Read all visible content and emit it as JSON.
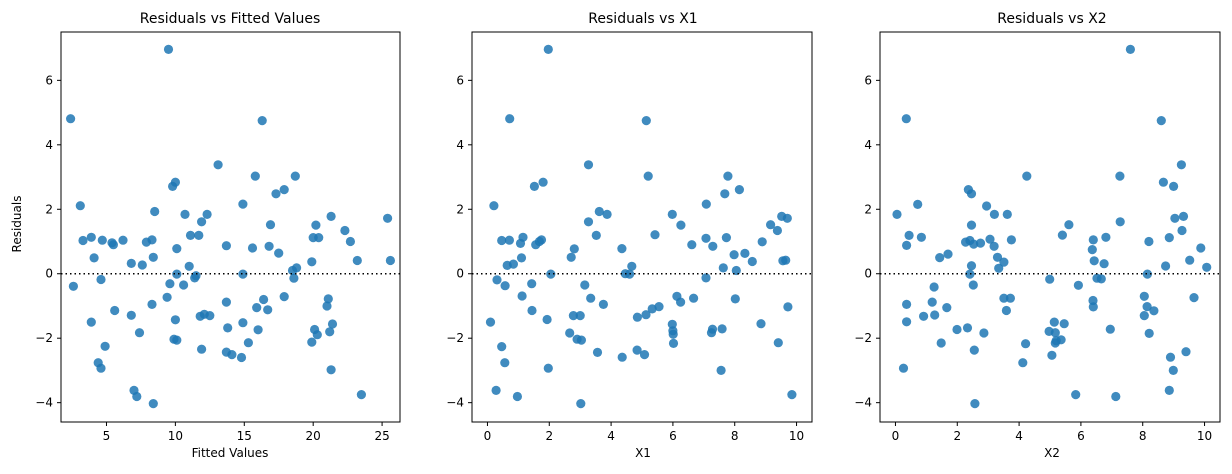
{
  "chart_data": [
    {
      "type": "scatter",
      "title": "Residuals vs Fitted Values",
      "xlabel": "Fitted Values",
      "ylabel": "Residuals",
      "xlim": [
        1.7,
        26.3
      ],
      "ylim": [
        -4.6,
        7.5
      ],
      "xticks": [
        5,
        10,
        15,
        20,
        25
      ],
      "yticks": [
        -4,
        -2,
        0,
        2,
        4,
        6
      ],
      "reference_line": {
        "y": 0,
        "style": "dotted"
      },
      "grid": false,
      "point_color": "#1f77b4",
      "points": [
        [
          9.5,
          6.96
        ],
        [
          2.4,
          4.81
        ],
        [
          16.3,
          4.75
        ],
        [
          13.1,
          3.38
        ],
        [
          15.8,
          3.03
        ],
        [
          18.7,
          3.03
        ],
        [
          10.0,
          2.84
        ],
        [
          9.8,
          2.71
        ],
        [
          17.9,
          2.61
        ],
        [
          17.3,
          2.48
        ],
        [
          14.9,
          2.16
        ],
        [
          3.1,
          2.11
        ],
        [
          8.5,
          1.93
        ],
        [
          10.7,
          1.84
        ],
        [
          12.3,
          1.84
        ],
        [
          21.3,
          1.78
        ],
        [
          25.4,
          1.72
        ],
        [
          11.9,
          1.61
        ],
        [
          16.9,
          1.52
        ],
        [
          20.2,
          1.51
        ],
        [
          22.3,
          1.34
        ],
        [
          11.1,
          1.19
        ],
        [
          11.7,
          1.19
        ],
        [
          20.0,
          1.12
        ],
        [
          20.4,
          1.12
        ],
        [
          3.9,
          1.13
        ],
        [
          3.3,
          1.03
        ],
        [
          4.7,
          1.04
        ],
        [
          6.2,
          1.04
        ],
        [
          8.3,
          1.05
        ],
        [
          22.7,
          1.0
        ],
        [
          7.9,
          0.98
        ],
        [
          5.5,
          0.9
        ],
        [
          5.4,
          0.96
        ],
        [
          13.7,
          0.87
        ],
        [
          16.8,
          0.85
        ],
        [
          15.6,
          0.8
        ],
        [
          10.1,
          0.78
        ],
        [
          17.5,
          0.64
        ],
        [
          4.1,
          0.49
        ],
        [
          8.4,
          0.51
        ],
        [
          25.6,
          0.41
        ],
        [
          23.2,
          0.41
        ],
        [
          19.9,
          0.37
        ],
        [
          6.8,
          0.32
        ],
        [
          7.6,
          0.27
        ],
        [
          11.0,
          0.23
        ],
        [
          18.8,
          0.18
        ],
        [
          18.5,
          0.1
        ],
        [
          10.1,
          -0.01
        ],
        [
          14.9,
          -0.01
        ],
        [
          11.5,
          -0.06
        ],
        [
          11.4,
          -0.13
        ],
        [
          18.6,
          -0.14
        ],
        [
          4.6,
          -0.18
        ],
        [
          9.6,
          -0.31
        ],
        [
          2.6,
          -0.39
        ],
        [
          10.6,
          -0.35
        ],
        [
          21.1,
          -0.78
        ],
        [
          16.4,
          -0.8
        ],
        [
          17.9,
          -0.71
        ],
        [
          9.4,
          -0.73
        ],
        [
          13.7,
          -0.88
        ],
        [
          8.3,
          -0.95
        ],
        [
          21.0,
          -1.0
        ],
        [
          16.7,
          -1.12
        ],
        [
          5.6,
          -1.14
        ],
        [
          15.9,
          -1.05
        ],
        [
          12.1,
          -1.26
        ],
        [
          12.5,
          -1.3
        ],
        [
          6.8,
          -1.29
        ],
        [
          11.8,
          -1.32
        ],
        [
          3.9,
          -1.5
        ],
        [
          10.0,
          -1.43
        ],
        [
          21.4,
          -1.56
        ],
        [
          14.9,
          -1.52
        ],
        [
          13.8,
          -1.68
        ],
        [
          16.0,
          -1.74
        ],
        [
          20.1,
          -1.73
        ],
        [
          21.2,
          -1.8
        ],
        [
          7.4,
          -1.83
        ],
        [
          20.3,
          -1.89
        ],
        [
          9.9,
          -2.03
        ],
        [
          10.1,
          -2.06
        ],
        [
          15.3,
          -2.14
        ],
        [
          19.9,
          -2.12
        ],
        [
          4.9,
          -2.25
        ],
        [
          11.9,
          -2.34
        ],
        [
          13.7,
          -2.43
        ],
        [
          14.1,
          -2.51
        ],
        [
          14.8,
          -2.6
        ],
        [
          4.4,
          -2.76
        ],
        [
          4.6,
          -2.93
        ],
        [
          21.3,
          -2.98
        ],
        [
          7.0,
          -3.62
        ],
        [
          7.2,
          -3.81
        ],
        [
          23.5,
          -3.75
        ],
        [
          8.4,
          -4.03
        ]
      ]
    },
    {
      "type": "scatter",
      "title": "Residuals vs X1",
      "xlabel": "X1",
      "ylabel": "",
      "xlim": [
        -0.5,
        10.5
      ],
      "ylim": [
        -4.6,
        7.5
      ],
      "xticks": [
        0,
        2,
        4,
        6,
        8,
        10
      ],
      "yticks": [
        -4,
        -2,
        0,
        2,
        4,
        6
      ],
      "reference_line": {
        "y": 0,
        "style": "dotted"
      },
      "grid": false,
      "point_color": "#1f77b4",
      "points": [
        [
          1.97,
          6.96
        ],
        [
          0.72,
          4.81
        ],
        [
          5.14,
          4.75
        ],
        [
          3.27,
          3.38
        ],
        [
          5.2,
          3.03
        ],
        [
          7.78,
          3.03
        ],
        [
          1.8,
          2.84
        ],
        [
          1.52,
          2.71
        ],
        [
          8.15,
          2.61
        ],
        [
          7.68,
          2.48
        ],
        [
          7.08,
          2.16
        ],
        [
          0.21,
          2.11
        ],
        [
          3.62,
          1.93
        ],
        [
          3.87,
          1.84
        ],
        [
          5.98,
          1.84
        ],
        [
          9.52,
          1.78
        ],
        [
          9.7,
          1.72
        ],
        [
          3.27,
          1.61
        ],
        [
          9.16,
          1.52
        ],
        [
          6.26,
          1.51
        ],
        [
          9.38,
          1.34
        ],
        [
          3.52,
          1.19
        ],
        [
          5.42,
          1.21
        ],
        [
          7.07,
          1.1
        ],
        [
          7.73,
          1.12
        ],
        [
          1.15,
          1.13
        ],
        [
          0.46,
          1.03
        ],
        [
          0.71,
          1.04
        ],
        [
          1.75,
          1.05
        ],
        [
          1.68,
          1.0
        ],
        [
          8.89,
          0.99
        ],
        [
          1.56,
          0.9
        ],
        [
          1.07,
          0.94
        ],
        [
          6.61,
          0.9
        ],
        [
          7.29,
          0.85
        ],
        [
          4.35,
          0.78
        ],
        [
          2.81,
          0.77
        ],
        [
          7.98,
          0.59
        ],
        [
          8.33,
          0.63
        ],
        [
          1.1,
          0.49
        ],
        [
          2.71,
          0.51
        ],
        [
          9.65,
          0.42
        ],
        [
          9.56,
          0.4
        ],
        [
          8.57,
          0.38
        ],
        [
          0.84,
          0.3
        ],
        [
          0.64,
          0.26
        ],
        [
          4.67,
          0.23
        ],
        [
          7.63,
          0.18
        ],
        [
          8.05,
          0.1
        ],
        [
          4.6,
          -0.01
        ],
        [
          2.05,
          -0.01
        ],
        [
          4.46,
          0.0
        ],
        [
          7.07,
          -0.13
        ],
        [
          0.31,
          -0.19
        ],
        [
          1.43,
          -0.31
        ],
        [
          0.57,
          -0.37
        ],
        [
          3.15,
          -0.35
        ],
        [
          6.13,
          -0.7
        ],
        [
          3.34,
          -0.76
        ],
        [
          6.67,
          -0.76
        ],
        [
          8.02,
          -0.78
        ],
        [
          1.12,
          -0.69
        ],
        [
          6.25,
          -0.88
        ],
        [
          3.75,
          -0.95
        ],
        [
          5.55,
          -1.02
        ],
        [
          9.72,
          -1.03
        ],
        [
          5.33,
          -1.09
        ],
        [
          1.44,
          -1.14
        ],
        [
          4.85,
          -1.35
        ],
        [
          5.13,
          -1.27
        ],
        [
          2.78,
          -1.3
        ],
        [
          3.0,
          -1.3
        ],
        [
          0.1,
          -1.5
        ],
        [
          1.93,
          -1.42
        ],
        [
          5.98,
          -1.57
        ],
        [
          8.85,
          -1.55
        ],
        [
          7.28,
          -1.72
        ],
        [
          7.59,
          -1.71
        ],
        [
          6.0,
          -1.77
        ],
        [
          7.25,
          -1.83
        ],
        [
          2.66,
          -1.84
        ],
        [
          6.01,
          -1.88
        ],
        [
          2.9,
          -2.03
        ],
        [
          3.04,
          -2.06
        ],
        [
          6.02,
          -2.16
        ],
        [
          9.41,
          -2.14
        ],
        [
          0.46,
          -2.26
        ],
        [
          4.84,
          -2.37
        ],
        [
          3.56,
          -2.44
        ],
        [
          5.08,
          -2.51
        ],
        [
          4.36,
          -2.59
        ],
        [
          0.56,
          -2.76
        ],
        [
          1.97,
          -2.93
        ],
        [
          7.56,
          -3.0
        ],
        [
          0.28,
          -3.62
        ],
        [
          0.97,
          -3.81
        ],
        [
          9.85,
          -3.75
        ],
        [
          3.02,
          -4.03
        ]
      ]
    },
    {
      "type": "scatter",
      "title": "Residuals vs X2",
      "xlabel": "X2",
      "ylabel": "",
      "xlim": [
        -0.5,
        10.5
      ],
      "ylim": [
        -4.6,
        7.5
      ],
      "xticks": [
        0,
        2,
        4,
        6,
        8,
        10
      ],
      "yticks": [
        -4,
        -2,
        0,
        2,
        4,
        6
      ],
      "reference_line": {
        "y": 0,
        "style": "dotted"
      },
      "grid": false,
      "point_color": "#1f77b4",
      "points": [
        [
          7.6,
          6.96
        ],
        [
          0.35,
          4.81
        ],
        [
          8.6,
          4.75
        ],
        [
          9.25,
          3.38
        ],
        [
          4.25,
          3.03
        ],
        [
          7.26,
          3.03
        ],
        [
          8.67,
          2.84
        ],
        [
          9.0,
          2.71
        ],
        [
          2.36,
          2.61
        ],
        [
          2.46,
          2.48
        ],
        [
          0.72,
          2.15
        ],
        [
          2.95,
          2.1
        ],
        [
          3.2,
          1.84
        ],
        [
          3.62,
          1.84
        ],
        [
          0.05,
          1.84
        ],
        [
          9.32,
          1.78
        ],
        [
          9.04,
          1.72
        ],
        [
          7.27,
          1.61
        ],
        [
          5.61,
          1.52
        ],
        [
          2.46,
          1.51
        ],
        [
          9.27,
          1.34
        ],
        [
          0.44,
          1.19
        ],
        [
          5.4,
          1.2
        ],
        [
          8.86,
          1.12
        ],
        [
          6.81,
          1.13
        ],
        [
          0.84,
          1.13
        ],
        [
          2.41,
          1.03
        ],
        [
          3.06,
          1.07
        ],
        [
          6.4,
          1.05
        ],
        [
          3.75,
          1.05
        ],
        [
          8.2,
          1.0
        ],
        [
          2.27,
          0.98
        ],
        [
          2.53,
          0.92
        ],
        [
          0.36,
          0.88
        ],
        [
          2.75,
          0.95
        ],
        [
          3.19,
          0.85
        ],
        [
          1.7,
          0.61
        ],
        [
          9.88,
          0.8
        ],
        [
          6.37,
          0.75
        ],
        [
          1.43,
          0.5
        ],
        [
          3.3,
          0.51
        ],
        [
          9.52,
          0.42
        ],
        [
          6.43,
          0.4
        ],
        [
          3.51,
          0.36
        ],
        [
          6.75,
          0.31
        ],
        [
          2.46,
          0.25
        ],
        [
          8.74,
          0.24
        ],
        [
          3.34,
          0.17
        ],
        [
          10.07,
          0.2
        ],
        [
          2.41,
          -0.01
        ],
        [
          8.15,
          -0.01
        ],
        [
          6.52,
          -0.14
        ],
        [
          6.66,
          -0.16
        ],
        [
          4.99,
          -0.17
        ],
        [
          5.92,
          -0.36
        ],
        [
          1.25,
          -0.41
        ],
        [
          2.52,
          -0.35
        ],
        [
          8.05,
          -0.7
        ],
        [
          3.72,
          -0.76
        ],
        [
          3.51,
          -0.76
        ],
        [
          9.66,
          -0.74
        ],
        [
          6.39,
          -0.83
        ],
        [
          1.19,
          -0.88
        ],
        [
          0.36,
          -0.95
        ],
        [
          8.14,
          -1.02
        ],
        [
          1.66,
          -1.05
        ],
        [
          6.4,
          -1.03
        ],
        [
          8.36,
          -1.15
        ],
        [
          3.59,
          -1.14
        ],
        [
          1.27,
          -1.28
        ],
        [
          0.91,
          -1.32
        ],
        [
          8.05,
          -1.3
        ],
        [
          0.36,
          -1.49
        ],
        [
          5.14,
          -1.5
        ],
        [
          5.46,
          -1.55
        ],
        [
          2.33,
          -1.68
        ],
        [
          1.99,
          -1.73
        ],
        [
          6.95,
          -1.72
        ],
        [
          4.97,
          -1.79
        ],
        [
          5.17,
          -1.83
        ],
        [
          2.86,
          -1.84
        ],
        [
          8.21,
          -1.85
        ],
        [
          5.36,
          -2.05
        ],
        [
          5.2,
          -2.08
        ],
        [
          1.48,
          -2.15
        ],
        [
          5.17,
          -2.15
        ],
        [
          4.21,
          -2.17
        ],
        [
          2.55,
          -2.37
        ],
        [
          9.4,
          -2.42
        ],
        [
          5.06,
          -2.53
        ],
        [
          8.9,
          -2.59
        ],
        [
          4.12,
          -2.76
        ],
        [
          0.26,
          -2.93
        ],
        [
          8.99,
          -3.0
        ],
        [
          5.83,
          -3.75
        ],
        [
          8.86,
          -3.62
        ],
        [
          7.13,
          -3.81
        ],
        [
          2.57,
          -4.03
        ]
      ]
    }
  ]
}
